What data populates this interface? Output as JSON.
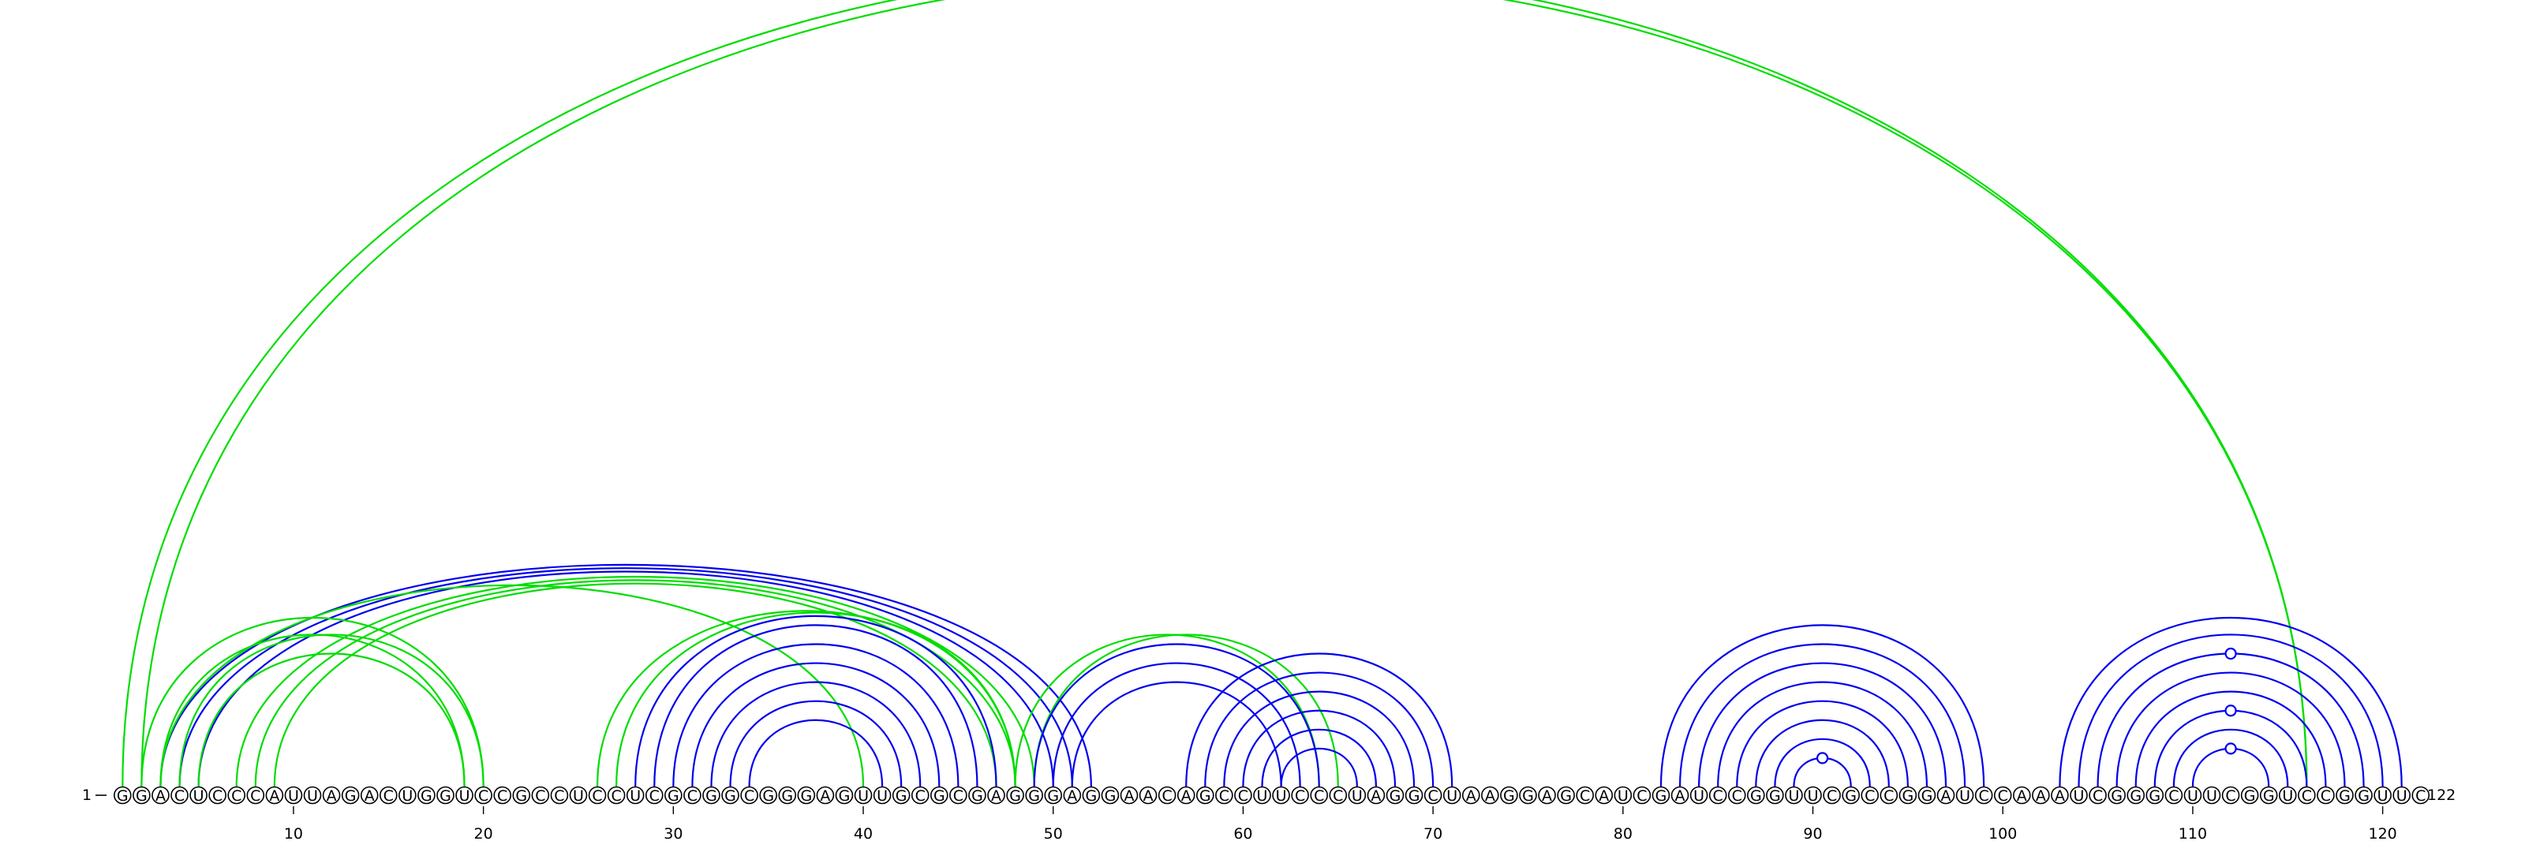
{
  "diagram": {
    "sequence": "GGACUCCCAUUAGACUGGUCCGCCUCCUCGCGGCGGGAGUUGCGCGAGGGAGGAACAGCCUUCCCUAGGCUAAGGAGCAUCGAUCCGGUUCGCCGGAUCCAAAUCGGGCUUCGGUCCGGUUC",
    "start_label": "1",
    "end_label": "122",
    "tick_positions": [
      10,
      20,
      30,
      40,
      50,
      60,
      70,
      80,
      90,
      100,
      110,
      120
    ],
    "colors": {
      "blue": "#0000ee",
      "green": "#00dd00"
    },
    "helices": [
      {
        "name": "long-range",
        "color": "green",
        "pairs": [
          [
            1,
            116
          ],
          [
            2,
            116
          ]
        ]
      },
      {
        "name": "h-3-52",
        "color": "blue",
        "pairs": [
          [
            3,
            52
          ],
          [
            4,
            51
          ],
          [
            5,
            50
          ]
        ]
      },
      {
        "name": "h-7-49",
        "color": "green",
        "pairs": [
          [
            7,
            49
          ],
          [
            8,
            48
          ],
          [
            9,
            47
          ]
        ]
      },
      {
        "name": "h-3-40",
        "color": "green",
        "pairs": [
          [
            3,
            40
          ]
        ]
      },
      {
        "name": "h-2-20",
        "color": "green",
        "pairs": [
          [
            2,
            20
          ],
          [
            3,
            19
          ]
        ]
      },
      {
        "name": "h-4-20",
        "color": "green",
        "pairs": [
          [
            4,
            20
          ],
          [
            5,
            19
          ]
        ]
      },
      {
        "name": "h-26-48",
        "color": "green",
        "pairs": [
          [
            26,
            48
          ],
          [
            27,
            48
          ]
        ]
      },
      {
        "name": "h-28-47",
        "color": "blue",
        "pairs": [
          [
            28,
            47
          ],
          [
            29,
            46
          ],
          [
            30,
            45
          ],
          [
            31,
            44
          ],
          [
            32,
            43
          ],
          [
            33,
            42
          ],
          [
            34,
            41
          ]
        ]
      },
      {
        "name": "h-48-64",
        "color": "green",
        "pairs": [
          [
            48,
            64
          ],
          [
            49,
            65
          ]
        ]
      },
      {
        "name": "h-49-64",
        "color": "blue",
        "pairs": [
          [
            49,
            64
          ],
          [
            50,
            63
          ],
          [
            51,
            62
          ]
        ]
      },
      {
        "name": "h-57-71",
        "color": "blue",
        "pairs": [
          [
            57,
            71
          ],
          [
            58,
            70
          ],
          [
            59,
            69
          ],
          [
            60,
            68
          ],
          [
            61,
            67
          ],
          [
            62,
            66
          ]
        ]
      },
      {
        "name": "h-82-99",
        "color": "blue",
        "pairs": [
          [
            82,
            99
          ],
          [
            83,
            98
          ],
          [
            84,
            97
          ],
          [
            85,
            96
          ],
          [
            86,
            95
          ],
          [
            87,
            94
          ],
          [
            88,
            93
          ],
          [
            89,
            92
          ]
        ]
      },
      {
        "name": "h-103-121",
        "color": "blue",
        "pairs": [
          [
            103,
            121
          ],
          [
            104,
            120
          ],
          [
            105,
            119
          ],
          [
            106,
            118
          ],
          [
            107,
            117
          ],
          [
            108,
            116
          ],
          [
            109,
            115
          ],
          [
            110,
            114
          ]
        ]
      }
    ],
    "loop_markers": [
      91,
      112,
      112,
      112
    ]
  }
}
